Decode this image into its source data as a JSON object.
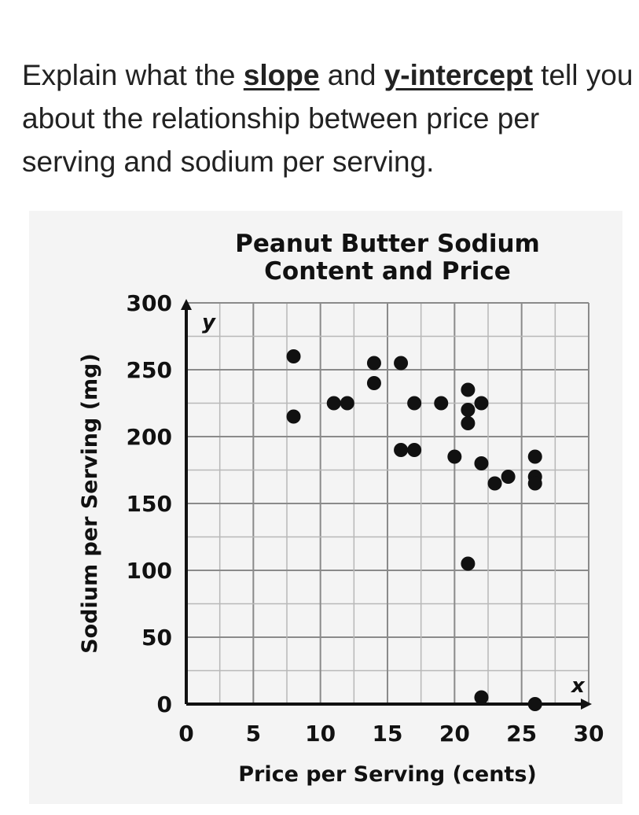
{
  "question": {
    "part1": "Explain what the ",
    "kw1": "slope",
    "part2": " and ",
    "kw2": "y-intercept",
    "part3": " tell you about the relationship between price per serving and sodium per serving."
  },
  "chart_data": {
    "type": "scatter",
    "title_line1": "Peanut Butter Sodium",
    "title_line2": "Content and Price",
    "xlabel": "Price per Serving (cents)",
    "ylabel": "Sodium per Serving (mg)",
    "x_axis_letter": "x",
    "y_axis_letter": "y",
    "xlim": [
      0,
      30
    ],
    "ylim": [
      0,
      300
    ],
    "xticks": [
      0,
      5,
      10,
      15,
      20,
      25,
      30
    ],
    "yticks": [
      0,
      50,
      100,
      150,
      200,
      250,
      300
    ],
    "grid": true,
    "points": [
      {
        "x": 8,
        "y": 260
      },
      {
        "x": 8,
        "y": 215
      },
      {
        "x": 11,
        "y": 225
      },
      {
        "x": 12,
        "y": 225
      },
      {
        "x": 14,
        "y": 255
      },
      {
        "x": 14,
        "y": 240
      },
      {
        "x": 16,
        "y": 255
      },
      {
        "x": 16,
        "y": 190
      },
      {
        "x": 17,
        "y": 190
      },
      {
        "x": 17,
        "y": 225
      },
      {
        "x": 19,
        "y": 225
      },
      {
        "x": 20,
        "y": 185
      },
      {
        "x": 21,
        "y": 235
      },
      {
        "x": 21,
        "y": 220
      },
      {
        "x": 21,
        "y": 210
      },
      {
        "x": 21,
        "y": 105
      },
      {
        "x": 22,
        "y": 225
      },
      {
        "x": 22,
        "y": 180
      },
      {
        "x": 22,
        "y": 5
      },
      {
        "x": 23,
        "y": 165
      },
      {
        "x": 24,
        "y": 170
      },
      {
        "x": 26,
        "y": 185
      },
      {
        "x": 26,
        "y": 170
      },
      {
        "x": 26,
        "y": 165
      },
      {
        "x": 26,
        "y": 0
      }
    ]
  }
}
